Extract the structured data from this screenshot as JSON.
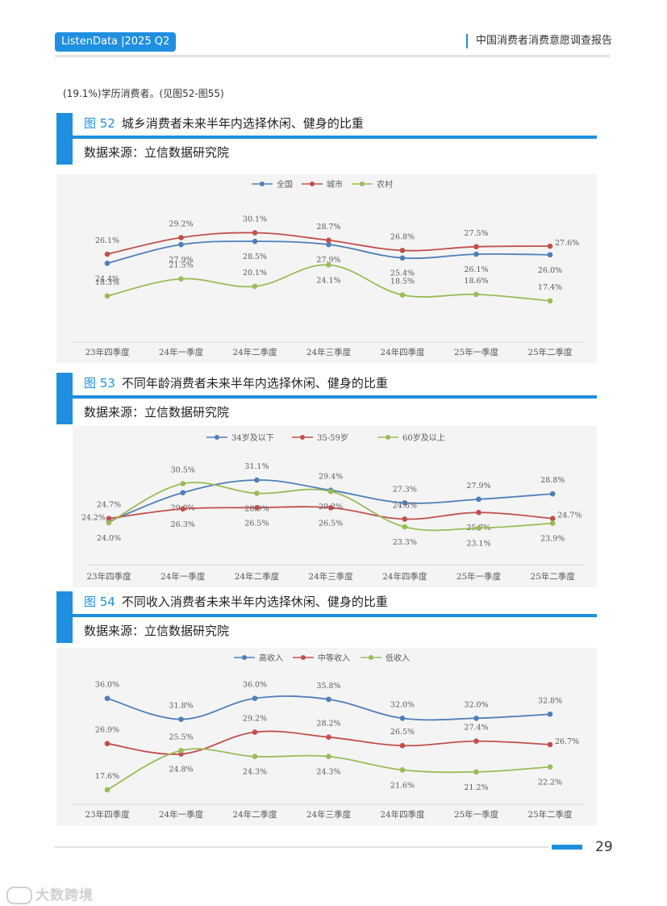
{
  "header": {
    "brand": "ListenData |2025 Q2",
    "report_title": "中国消费者消费意愿调查报告"
  },
  "intro_text": "(19.1%)学历消费者。(见图52-图55)",
  "figures": [
    {
      "number": "图 52",
      "title": "城乡消费者未来半年内选择休闲、健身的比重",
      "source": "数据来源：立信数据研究院"
    },
    {
      "number": "图 53",
      "title": "不同年龄消费者未来半年内选择休闲、健身的比重",
      "source": "数据来源：立信数据研究院"
    },
    {
      "number": "图 54",
      "title": "不同收入消费者未来半年内选择休闲、健身的比重",
      "source": "数据来源：立信数据研究院"
    }
  ],
  "chart_data": [
    {
      "type": "line",
      "title": "城乡消费者未来半年内选择休闲、健身的比重",
      "categories": [
        "23年四季度",
        "24年一季度",
        "24年二季度",
        "24年三季度",
        "24年四季度",
        "25年一季度",
        "25年二季度"
      ],
      "ylim": [
        10,
        35
      ],
      "grid": false,
      "legend": "top-center",
      "series": [
        {
          "name": "全国",
          "color": "#4f7fb8",
          "values": [
            24.4,
            27.9,
            28.5,
            27.9,
            25.4,
            26.1,
            26.0
          ],
          "labels": [
            "below",
            "below",
            "below",
            "below",
            "below",
            "below",
            "below"
          ]
        },
        {
          "name": "城市",
          "color": "#c0504d",
          "values": [
            26.1,
            29.2,
            30.1,
            28.7,
            26.8,
            27.5,
            27.6
          ],
          "labels": [
            "above",
            "above",
            "above",
            "above",
            "above",
            "above",
            "right"
          ]
        },
        {
          "name": "农村",
          "color": "#9bbb59",
          "values": [
            18.3,
            21.5,
            20.1,
            24.1,
            18.5,
            18.6,
            17.4
          ],
          "labels": [
            "above",
            "above",
            "above",
            "below",
            "above",
            "above",
            "above"
          ]
        }
      ]
    },
    {
      "type": "line",
      "title": "不同年龄消费者未来半年内选择休闲、健身的比重",
      "categories": [
        "23年四季度",
        "24年一季度",
        "24年二季度",
        "24年三季度",
        "24年四季度",
        "25年一季度",
        "25年二季度"
      ],
      "ylim": [
        17,
        35
      ],
      "grid": false,
      "legend": "top-center",
      "series": [
        {
          "name": "34岁及以下",
          "color": "#4f7fb8",
          "values": [
            24.2,
            29.0,
            31.1,
            29.4,
            27.3,
            27.9,
            28.8
          ],
          "labels": [
            "left",
            "below",
            "above",
            "above",
            "above",
            "above",
            "above"
          ]
        },
        {
          "name": "35-59岁",
          "color": "#c0504d",
          "values": [
            24.7,
            26.3,
            26.5,
            26.5,
            24.6,
            25.7,
            24.7
          ],
          "labels": [
            "above",
            "below",
            "below",
            "below",
            "above",
            "below",
            "right"
          ]
        },
        {
          "name": "60岁及以上",
          "color": "#9bbb59",
          "values": [
            24.0,
            30.5,
            28.9,
            29.2,
            23.3,
            23.1,
            23.9
          ],
          "labels": [
            "below",
            "above",
            "below",
            "below",
            "below",
            "below",
            "below"
          ]
        }
      ]
    },
    {
      "type": "line",
      "title": "不同收入消费者未来半年内选择休闲、健身的比重",
      "categories": [
        "23年四季度",
        "24年一季度",
        "24年二季度",
        "24年三季度",
        "24年四季度",
        "25年一季度",
        "25年二季度"
      ],
      "ylim": [
        15,
        40
      ],
      "grid": false,
      "legend": "top-center",
      "series": [
        {
          "name": "高收入",
          "color": "#4f7fb8",
          "values": [
            36.0,
            31.8,
            36.0,
            35.8,
            32.0,
            32.0,
            32.8
          ],
          "labels": [
            "above",
            "above",
            "above",
            "above",
            "above",
            "above",
            "above"
          ]
        },
        {
          "name": "中等收入",
          "color": "#c0504d",
          "values": [
            26.9,
            24.8,
            29.2,
            28.2,
            26.5,
            27.4,
            26.7
          ],
          "labels": [
            "above",
            "below",
            "above",
            "above",
            "above",
            "above",
            "right"
          ]
        },
        {
          "name": "低收入",
          "color": "#9bbb59",
          "values": [
            17.6,
            25.5,
            24.3,
            24.3,
            21.6,
            21.2,
            22.2
          ],
          "labels": [
            "above",
            "above",
            "below",
            "below",
            "below",
            "below",
            "below"
          ]
        }
      ]
    }
  ],
  "footer": {
    "page_number": "29",
    "watermark": "大数跨境"
  }
}
